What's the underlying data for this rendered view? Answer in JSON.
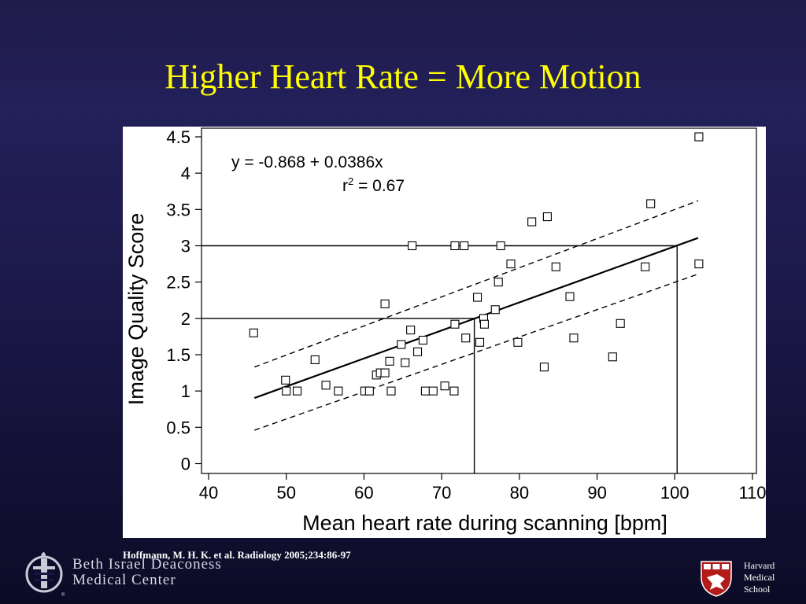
{
  "slide": {
    "title": "Higher Heart Rate = More Motion",
    "citation": "Hoffmann, M. H. K. et al. Radiology 2005;234:86-97"
  },
  "logos": {
    "bidmc_line1": "Beth Israel Deaconess",
    "bidmc_line2": "Medical Center",
    "harvard_line1": "Harvard",
    "harvard_line2": "Medical",
    "harvard_line3": "School"
  },
  "chart_data": {
    "type": "scatter",
    "title": "",
    "xlabel": "Mean heart rate during scanning [bpm]",
    "ylabel": "Image Quality Score",
    "xlim": [
      40,
      110
    ],
    "ylim": [
      0,
      4.5
    ],
    "xticks": [
      40,
      50,
      60,
      70,
      80,
      90,
      100,
      110
    ],
    "yticks": [
      0,
      0.5,
      1,
      1.5,
      2,
      2.5,
      3,
      3.5,
      4,
      4.5
    ],
    "grid": false,
    "annotations": {
      "equation": "y = -0.868 + 0.0386x",
      "r2_prefix": "r",
      "r2_sup": "2",
      "r2_suffix": " = 0.67"
    },
    "regression": {
      "intercept": -0.868,
      "slope": 0.0386,
      "x_range": [
        45.9,
        103.0
      ]
    },
    "confidence_band": {
      "upper": [
        [
          45.9,
          1.33
        ],
        [
          103.0,
          3.62
        ]
      ],
      "lower": [
        [
          45.9,
          0.46
        ],
        [
          103.0,
          2.61
        ]
      ]
    },
    "reference_lines": [
      {
        "y": 3,
        "x": 100.3
      },
      {
        "y": 2,
        "x": 74.2
      }
    ],
    "points": [
      [
        45.8,
        1.8
      ],
      [
        49.9,
        1.15
      ],
      [
        50.0,
        1.0
      ],
      [
        51.4,
        1.0
      ],
      [
        53.7,
        1.43
      ],
      [
        55.1,
        1.08
      ],
      [
        56.7,
        1.0
      ],
      [
        60.1,
        1.0
      ],
      [
        60.7,
        1.0
      ],
      [
        61.6,
        1.22
      ],
      [
        62.1,
        1.25
      ],
      [
        62.7,
        1.25
      ],
      [
        62.7,
        2.2
      ],
      [
        63.3,
        1.41
      ],
      [
        63.5,
        1.0
      ],
      [
        64.8,
        1.64
      ],
      [
        65.3,
        1.39
      ],
      [
        66.0,
        1.84
      ],
      [
        66.2,
        3.0
      ],
      [
        66.9,
        1.54
      ],
      [
        67.6,
        1.7
      ],
      [
        67.9,
        1.0
      ],
      [
        68.9,
        1.0
      ],
      [
        70.4,
        1.07
      ],
      [
        71.6,
        1.0
      ],
      [
        71.7,
        1.92
      ],
      [
        71.7,
        3.0
      ],
      [
        72.9,
        3.0
      ],
      [
        73.1,
        1.73
      ],
      [
        74.6,
        2.29
      ],
      [
        74.9,
        1.67
      ],
      [
        75.4,
        2.0
      ],
      [
        75.5,
        1.92
      ],
      [
        76.9,
        2.12
      ],
      [
        77.3,
        2.5
      ],
      [
        77.6,
        3.0
      ],
      [
        78.9,
        2.75
      ],
      [
        79.8,
        1.67
      ],
      [
        81.6,
        3.33
      ],
      [
        83.2,
        1.33
      ],
      [
        83.6,
        3.4
      ],
      [
        84.7,
        2.71
      ],
      [
        86.5,
        2.3
      ],
      [
        87.0,
        1.73
      ],
      [
        92.0,
        1.47
      ],
      [
        93.0,
        1.93
      ],
      [
        96.2,
        2.71
      ],
      [
        96.9,
        3.58
      ],
      [
        103.1,
        4.5
      ],
      [
        103.1,
        2.75
      ]
    ]
  }
}
